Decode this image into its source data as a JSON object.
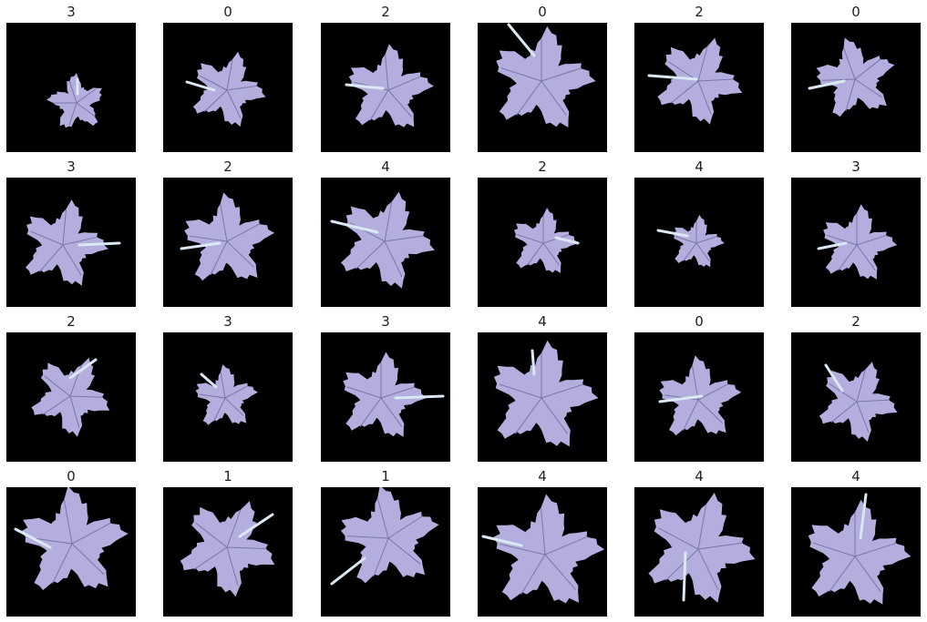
{
  "grid": {
    "rows": 4,
    "cols": 6,
    "background_color": "#000000",
    "leaf_color": "#b3aede",
    "vein_color": "#7a76a8",
    "stem_color": "#d9e8f2",
    "labels": [
      "3",
      "0",
      "2",
      "0",
      "2",
      "0",
      "3",
      "2",
      "4",
      "2",
      "4",
      "3",
      "2",
      "3",
      "3",
      "4",
      "0",
      "2",
      "0",
      "1",
      "1",
      "4",
      "4",
      "4"
    ]
  }
}
